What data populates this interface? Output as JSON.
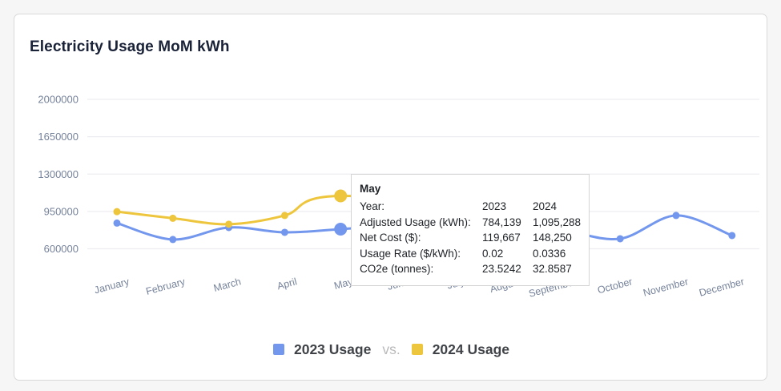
{
  "card": {
    "title": "Electricity Usage MoM kWh"
  },
  "chart_data": {
    "type": "line",
    "title": "Electricity Usage MoM kWh",
    "xlabel": "",
    "ylabel": "",
    "ylim": [
      600000,
      2000000
    ],
    "y_ticks": [
      2000000,
      1650000,
      1300000,
      950000,
      600000
    ],
    "grid": true,
    "legend_position": "bottom",
    "categories": [
      "January",
      "February",
      "March",
      "April",
      "May",
      "June",
      "July",
      "August",
      "September",
      "October",
      "November",
      "December"
    ],
    "series": [
      {
        "name": "2023 Usage",
        "color": "#7497ee",
        "values": [
          841000,
          687000,
          799000,
          754000,
          784139,
          822000,
          860000,
          845000,
          773000,
          694000,
          912000,
          724000
        ]
      },
      {
        "name": "2024 Usage",
        "color": "#eec63d",
        "values": [
          948000,
          886000,
          830000,
          912000,
          1095288,
          null,
          null,
          null,
          953000,
          null,
          null,
          null
        ]
      }
    ],
    "highlighted_month": "May"
  },
  "tooltip": {
    "title": "May",
    "rows": [
      {
        "label": "Year:",
        "y2023": "2023",
        "y2024": "2024"
      },
      {
        "label": "Adjusted Usage (kWh):",
        "y2023": "784,139",
        "y2024": "1,095,288"
      },
      {
        "label": "Net Cost ($):",
        "y2023": "119,667",
        "y2024": "148,250"
      },
      {
        "label": "Usage Rate ($/kWh):",
        "y2023": "0.02",
        "y2024": "0.0336"
      },
      {
        "label": "CO2e (tonnes):",
        "y2023": "23.5242",
        "y2024": "32.8587"
      }
    ]
  },
  "legend": {
    "vs": "vs."
  },
  "colors": {
    "grid": "#ededf1",
    "axis_label": "#76839b",
    "title": "#1a2238",
    "page_bg": "#f6f6f7",
    "card_border": "#d9d9d9",
    "tooltip_border": "#d4d4d4",
    "legend_text": "#3f4347",
    "legend_vs": "#b9babc"
  }
}
